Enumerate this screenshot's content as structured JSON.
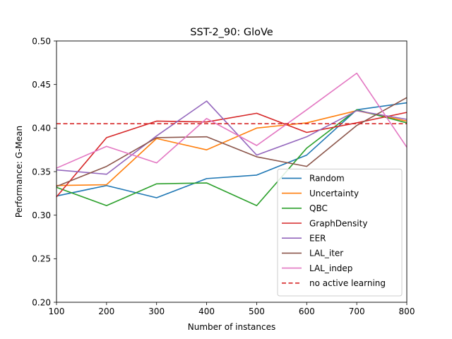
{
  "chart_data": {
    "type": "line",
    "title": "SST-2_90: GloVe",
    "xlabel": "Number of instances",
    "ylabel": "Performance: G-Mean",
    "xlim": [
      100,
      800
    ],
    "ylim": [
      0.2,
      0.5
    ],
    "x_ticks": [
      "100",
      "200",
      "300",
      "400",
      "500",
      "600",
      "700",
      "800"
    ],
    "y_ticks": [
      "0.20",
      "0.25",
      "0.30",
      "0.35",
      "0.40",
      "0.45",
      "0.50"
    ],
    "grid": false,
    "legend_position": "lower-right",
    "x": [
      100,
      200,
      300,
      400,
      500,
      600,
      700,
      800
    ],
    "series": [
      {
        "name": "Random",
        "color": "#1f77b4",
        "style": "solid",
        "values": [
          0.322,
          0.334,
          0.32,
          0.342,
          0.346,
          0.369,
          0.421,
          0.429
        ]
      },
      {
        "name": "Uncertainty",
        "color": "#ff7f0e",
        "style": "solid",
        "values": [
          0.334,
          0.335,
          0.388,
          0.375,
          0.4,
          0.406,
          0.42,
          0.408
        ]
      },
      {
        "name": "QBC",
        "color": "#2ca02c",
        "style": "solid",
        "values": [
          0.332,
          0.311,
          0.336,
          0.337,
          0.311,
          0.377,
          0.421,
          0.406
        ]
      },
      {
        "name": "GraphDensity",
        "color": "#d62728",
        "style": "solid",
        "values": [
          0.321,
          0.389,
          0.408,
          0.407,
          0.417,
          0.395,
          0.406,
          0.418
        ]
      },
      {
        "name": "EER",
        "color": "#9467bd",
        "style": "solid",
        "values": [
          0.352,
          0.347,
          0.391,
          0.431,
          0.369,
          0.39,
          0.42,
          0.41
        ]
      },
      {
        "name": "LAL_iter",
        "color": "#8c564b",
        "style": "solid",
        "values": [
          0.333,
          0.356,
          0.389,
          0.39,
          0.367,
          0.356,
          0.403,
          0.435
        ]
      },
      {
        "name": "LAL_indep",
        "color": "#e377c2",
        "style": "solid",
        "values": [
          0.354,
          0.379,
          0.36,
          0.411,
          0.38,
          0.421,
          0.463,
          0.378
        ]
      },
      {
        "name": "no active learning",
        "color": "#d62728",
        "style": "dashed",
        "values": [
          0.405,
          0.405,
          0.405,
          0.405,
          0.405,
          0.405,
          0.405,
          0.405
        ]
      }
    ]
  }
}
